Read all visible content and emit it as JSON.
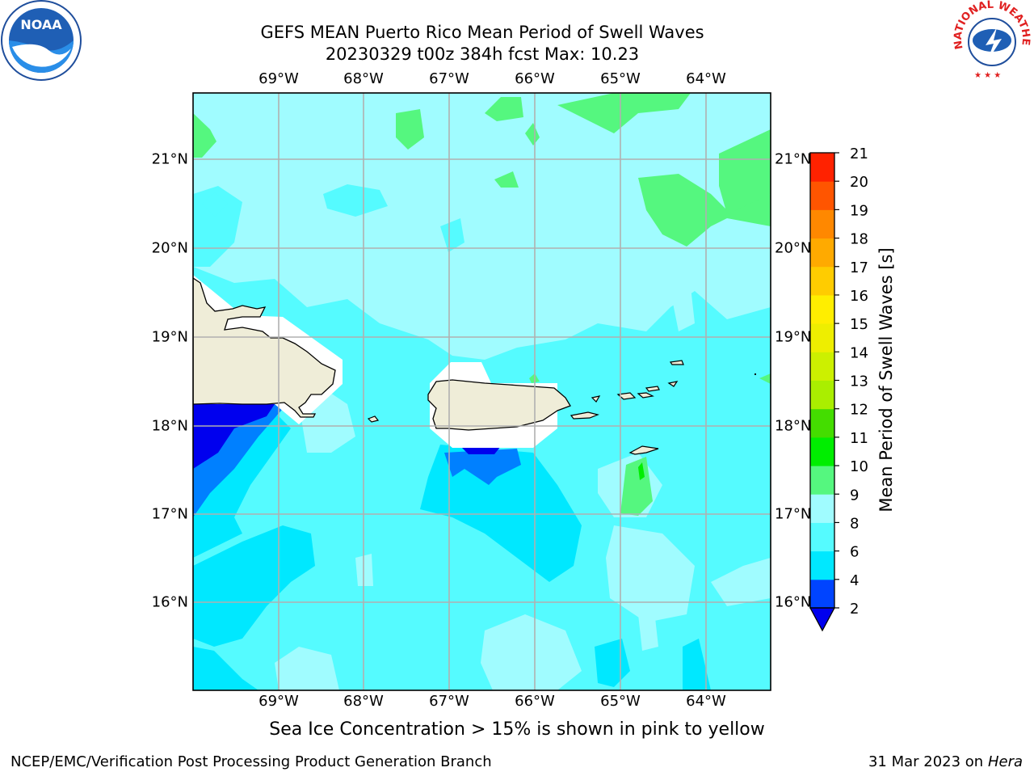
{
  "header": {
    "title_line1": "GEFS MEAN Puerto Rico Mean Period of Swell Waves",
    "title_line2": "20230329 t00z 384h fcst   Max: 10.23"
  },
  "map": {
    "lon_labels": [
      "69°W",
      "68°W",
      "67°W",
      "66°W",
      "65°W",
      "64°W"
    ],
    "lat_labels": [
      "21°N",
      "20°N",
      "19°N",
      "18°N",
      "17°N",
      "16°N"
    ],
    "ocean_fill_level": "8-9",
    "land_color": "#efedd8",
    "grid_color": "#b0b0b0"
  },
  "colorbar": {
    "title": "Mean Period of Swell Waves [s]",
    "ticks": [
      "2",
      "4",
      "6",
      "8",
      "9",
      "10",
      "11",
      "12",
      "13",
      "14",
      "15",
      "16",
      "17",
      "18",
      "19",
      "20",
      "21"
    ],
    "colors": [
      "#0044ff",
      "#00e8ff",
      "#55fbff",
      "#a0fcff",
      "#55f77f",
      "#00ee00",
      "#44dd00",
      "#aaee00",
      "#ccf000",
      "#eeee00",
      "#ffee00",
      "#ffcc00",
      "#ffaa00",
      "#ff8800",
      "#ff5500",
      "#ff2200",
      "#ff0000"
    ],
    "under_color": "#0000ee"
  },
  "footer": {
    "note": "Sea Ice Concentration > 15% is shown in pink to yellow",
    "credit": "NCEP/EMC/Verification Post Processing Product Generation Branch",
    "date": "31 Mar 2023 on",
    "host": "Hera"
  },
  "logos": {
    "noaa_text": "NOAA",
    "nws_text": "NATIONAL WEATHER SERVICE"
  }
}
